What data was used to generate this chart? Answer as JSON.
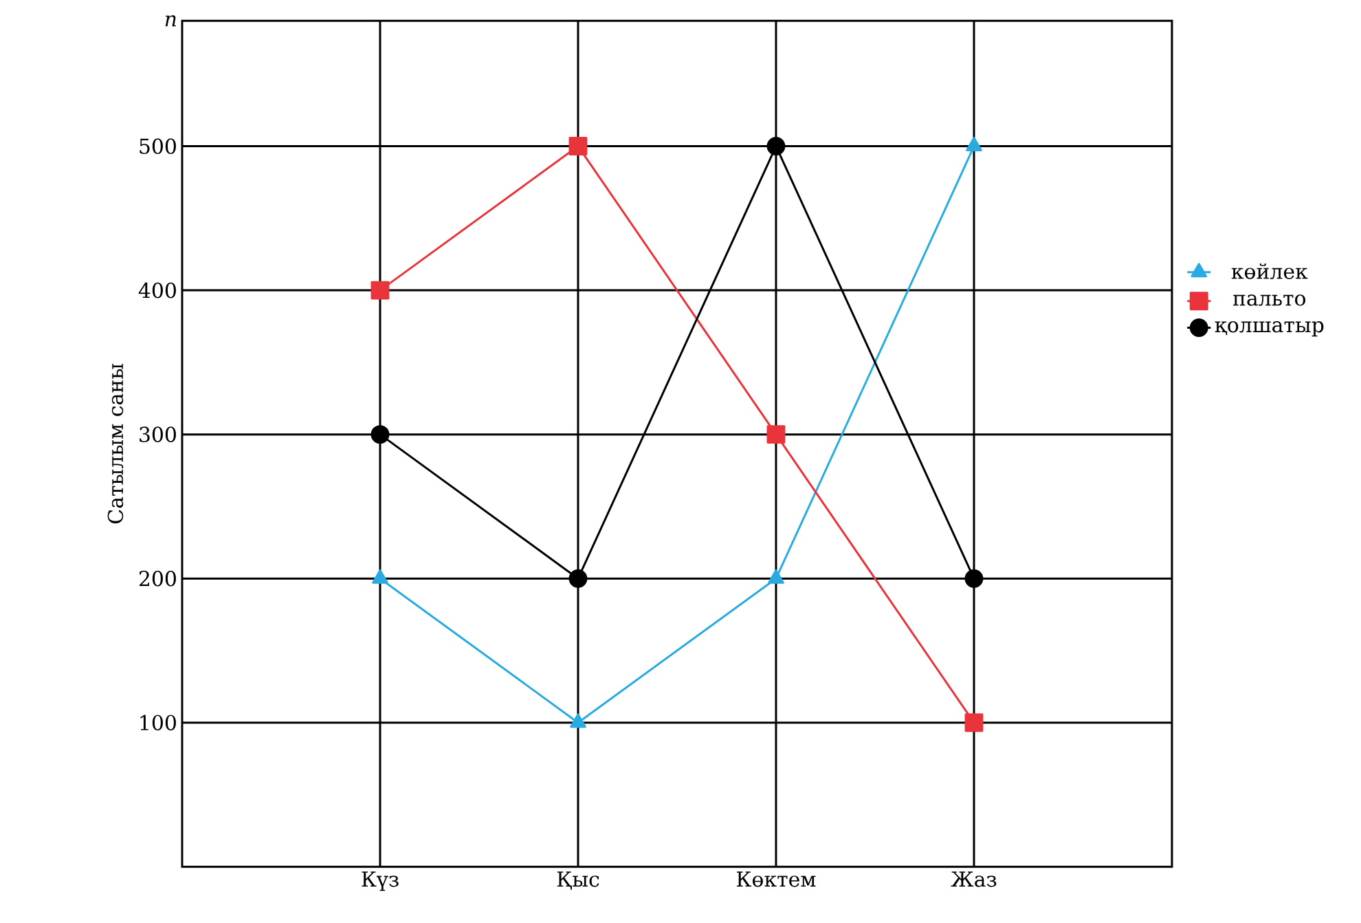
{
  "chart_data": {
    "type": "line",
    "ylabel": "Сатылым саны",
    "annotations": [
      "n"
    ],
    "categories": [
      "Күз",
      "Қыс",
      "Көктем",
      "Жаз"
    ],
    "series": [
      {
        "name": "көйлек",
        "color": "#29abe2",
        "marker": "triangle",
        "values": [
          200,
          100,
          200,
          500
        ]
      },
      {
        "name": "пальто",
        "color": "#e8343a",
        "marker": "square",
        "values": [
          400,
          500,
          300,
          100
        ]
      },
      {
        "name": "қолшатыр",
        "color": "#000000",
        "marker": "circle",
        "values": [
          300,
          200,
          500,
          200
        ]
      }
    ],
    "ylim": [
      0,
      587
    ],
    "yticks": [
      100,
      200,
      300,
      400,
      500
    ],
    "grid": true,
    "legend": "right",
    "line_style": "solid"
  }
}
